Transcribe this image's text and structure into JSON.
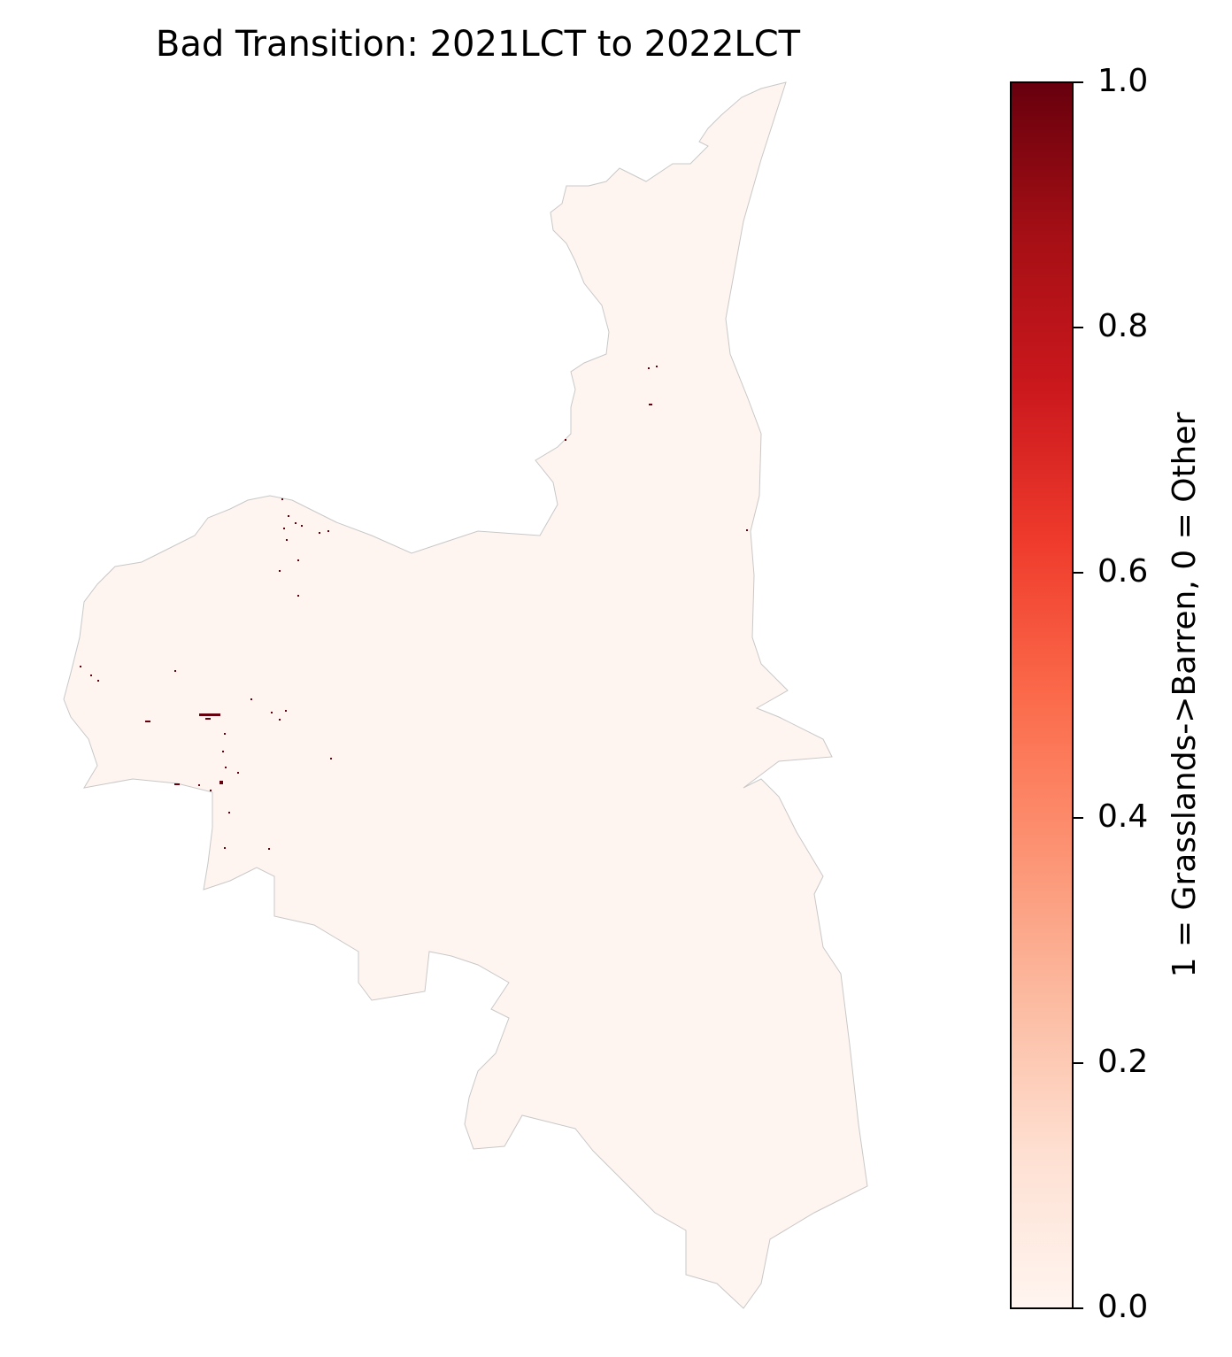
{
  "chart_data": {
    "type": "raster",
    "title": "Bad Transition: 2021LCT to 2022LCT",
    "colorbar": {
      "label": "1 = Grasslands->Barren, 0 = Other",
      "lim": [
        0,
        1
      ],
      "ticks": [
        {
          "value": 0,
          "label": "0.0"
        },
        {
          "value": 0.2,
          "label": "0.2"
        },
        {
          "value": 0.4,
          "label": "0.4"
        },
        {
          "value": 0.6,
          "label": "0.6"
        },
        {
          "value": 0.8,
          "label": "0.8"
        },
        {
          "value": 1,
          "label": "1.0"
        }
      ],
      "colormap": [
        "#fff5f0",
        "#fee0d2",
        "#fcbba1",
        "#fc9272",
        "#fb6a4a",
        "#ef3b2c",
        "#cb181d",
        "#a50f15",
        "#67000d"
      ]
    }
  }
}
